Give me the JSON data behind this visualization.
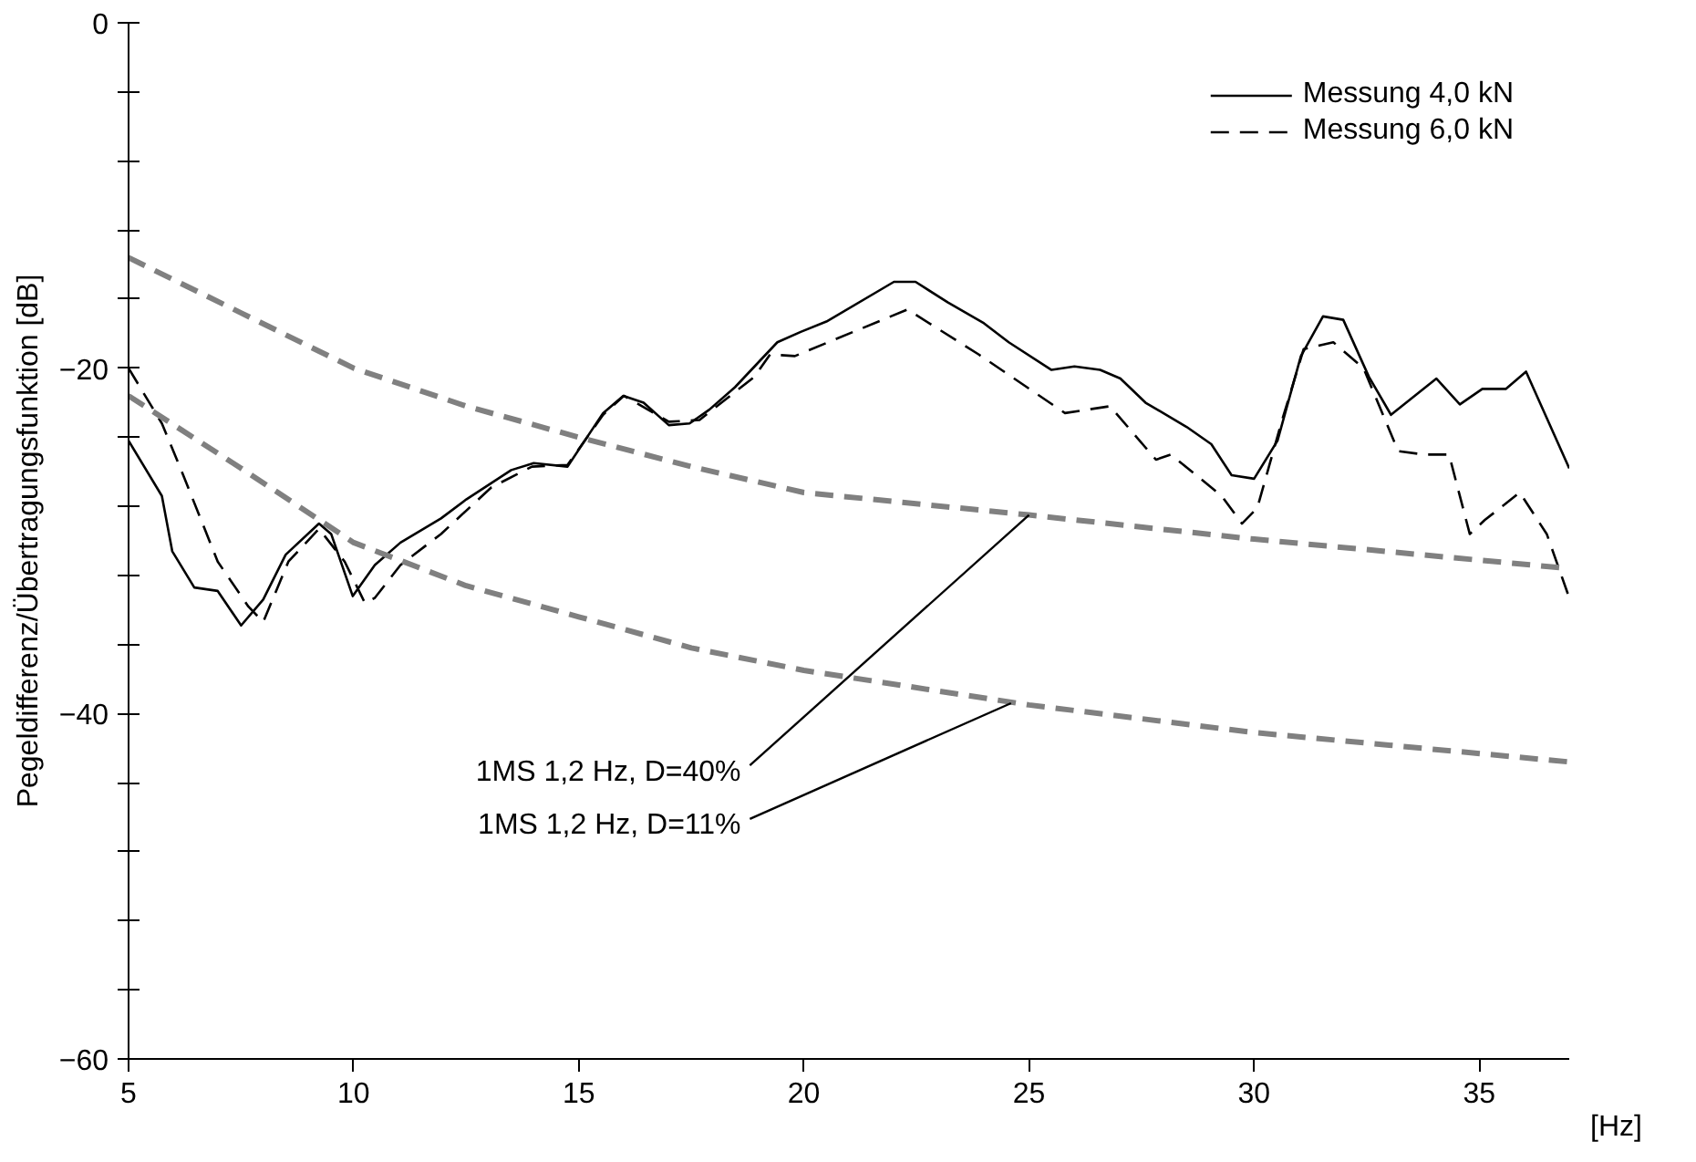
{
  "chart_data": {
    "type": "line",
    "xlabel": "[Hz]",
    "ylabel": "Pegeldifferenz/Übertragungsfunktion [dB]",
    "xlim": [
      5,
      37
    ],
    "ylim": [
      -60,
      0
    ],
    "xticks": [
      5,
      10,
      15,
      20,
      25,
      30,
      35
    ],
    "yticks": [
      0,
      {
        "value": -4,
        "label": null
      },
      {
        "value": -8,
        "label": null
      },
      {
        "value": -12,
        "label": null
      },
      {
        "value": -16,
        "label": null
      },
      -20,
      {
        "value": -24,
        "label": null
      },
      {
        "value": -28,
        "label": null
      },
      {
        "value": -32,
        "label": null
      },
      {
        "value": -36,
        "label": null
      },
      -40,
      {
        "value": -44,
        "label": null
      },
      {
        "value": -48,
        "label": null
      },
      {
        "value": -52,
        "label": null
      },
      {
        "value": -56,
        "label": null
      },
      -60
    ],
    "grid": false,
    "legend": "top right",
    "marker": "none",
    "series": [
      {
        "name": "Messung 4,0 kN",
        "color": "#000000",
        "line_style": "solid",
        "x": [
          5,
          5.74,
          5.97,
          6.46,
          6.98,
          7.5,
          7.99,
          8.49,
          9.23,
          9.5,
          9.98,
          10.47,
          11.04,
          11.94,
          12.5,
          13.5,
          14.0,
          14.75,
          15.54,
          15.99,
          16.44,
          17.0,
          17.46,
          17.9,
          18.47,
          19.41,
          19.93,
          20.5,
          22.0,
          22.48,
          23.2,
          24.0,
          24.55,
          25.5,
          26.01,
          26.58,
          27.03,
          27.59,
          28.5,
          29.05,
          29.5,
          30.0,
          30.52,
          31.04,
          31.53,
          31.98,
          32.55,
          33.04,
          34.05,
          34.57,
          35.07,
          35.59,
          36.04,
          37.0
        ],
        "values": [
          -24.2,
          -27.4,
          -30.6,
          -32.7,
          -32.9,
          -34.9,
          -33.4,
          -30.8,
          -29.0,
          -29.6,
          -33.2,
          -31.4,
          -30.1,
          -28.7,
          -27.6,
          -25.9,
          -25.5,
          -25.7,
          -22.6,
          -21.6,
          -22.0,
          -23.3,
          -23.2,
          -22.4,
          -21.1,
          -18.5,
          -17.9,
          -17.3,
          -15.0,
          -15.0,
          -16.2,
          -17.4,
          -18.5,
          -20.1,
          -19.9,
          -20.1,
          -20.6,
          -22.0,
          -23.4,
          -24.4,
          -26.2,
          -26.4,
          -24.2,
          -19.3,
          -17.0,
          -17.2,
          -20.5,
          -22.7,
          -20.6,
          -22.1,
          -21.2,
          -21.2,
          -20.2,
          -25.8
        ]
      },
      {
        "name": "Messung 6,0 kN",
        "color": "#000000",
        "line_style": "dashed",
        "x": [
          5,
          5.74,
          6.2,
          6.98,
          7.66,
          7.99,
          8.55,
          9.23,
          9.8,
          10.25,
          10.47,
          11.04,
          11.94,
          13.06,
          13.96,
          14.75,
          15.54,
          16.0,
          17.0,
          17.68,
          18.9,
          19.25,
          19.8,
          22.3,
          23.88,
          25.8,
          26.8,
          27.82,
          28.15,
          29.28,
          29.73,
          30.07,
          30.6,
          31.1,
          31.76,
          32.43,
          33.2,
          33.77,
          34.33,
          34.79,
          35.12,
          35.9,
          36.5,
          37.0
        ],
        "values": [
          -20.0,
          -23.2,
          -26.1,
          -31.2,
          -33.8,
          -34.7,
          -31.2,
          -29.3,
          -31.2,
          -33.6,
          -33.3,
          -31.4,
          -29.6,
          -26.9,
          -25.7,
          -25.6,
          -22.7,
          -21.6,
          -23.1,
          -23.0,
          -20.5,
          -19.2,
          -19.3,
          -16.6,
          -19.2,
          -22.6,
          -22.2,
          -25.3,
          -25.0,
          -27.4,
          -29.0,
          -28.1,
          -23.2,
          -18.9,
          -18.5,
          -20.0,
          -24.8,
          -25.0,
          -25.0,
          -29.6,
          -28.8,
          -27.2,
          -29.6,
          -33.3
        ]
      },
      {
        "color": "#808080",
        "line_style": "dashed",
        "x": [
          5,
          7.5,
          10,
          12.5,
          15,
          17.5,
          20,
          25,
          30,
          37
        ],
        "values": [
          -13.6,
          -16.8,
          -20.0,
          -22.2,
          -24.0,
          -25.7,
          -27.2,
          -28.5,
          -29.9,
          -31.6
        ]
      },
      {
        "color": "#808080",
        "line_style": "dashed",
        "x": [
          5,
          7.5,
          10,
          12.5,
          15,
          17.5,
          20,
          25,
          30,
          37
        ],
        "values": [
          -21.6,
          -25.8,
          -30.1,
          -32.6,
          -34.4,
          -36.2,
          -37.5,
          -39.5,
          -41.1,
          -42.8
        ]
      }
    ],
    "annotations": [
      {
        "text": "1MS 1,2 Hz, D=40%",
        "x": 25,
        "y": -28.5
      },
      {
        "text": "1MS 1,2 Hz, D=11%",
        "x": 24.6,
        "y": -39.4
      }
    ]
  }
}
